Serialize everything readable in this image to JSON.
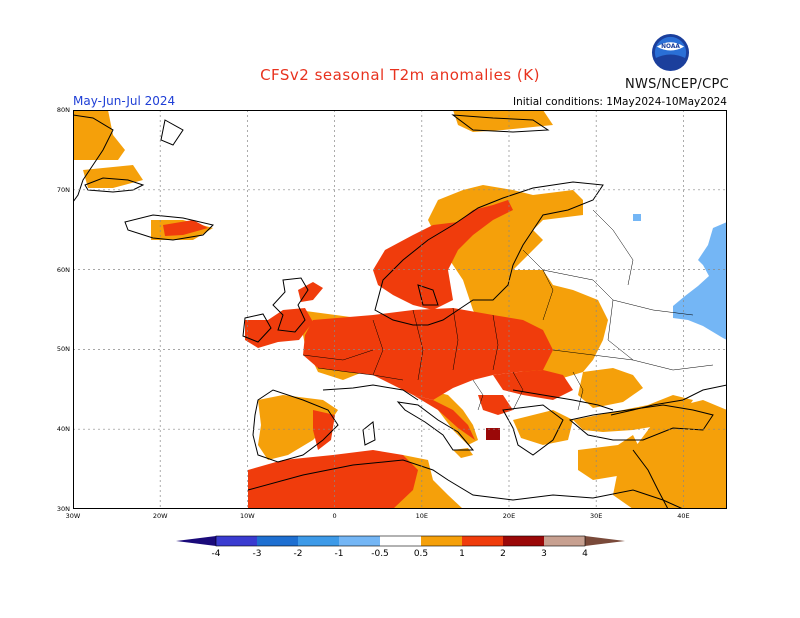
{
  "header": {
    "title": "CFSv2 seasonal T2m anomalies (K)",
    "agency": "NWS/NCEP/CPC",
    "period": "May-Jun-Jul 2024",
    "initial_conditions": "Initial conditions: 1May2024-10May2024",
    "logo_text": "NOAA"
  },
  "map": {
    "lat_labels": [
      "80N",
      "70N",
      "60N",
      "50N",
      "40N",
      "30N"
    ],
    "lon_labels": [
      "30W",
      "20W",
      "10W",
      "0",
      "10E",
      "20E",
      "30E",
      "40E"
    ],
    "lon_range": [
      -30,
      45
    ],
    "lat_range": [
      30,
      80
    ]
  },
  "colorbar": {
    "labels": [
      "-4",
      "-3",
      "-2",
      "-1",
      "-0.5",
      "0.5",
      "1",
      "2",
      "3",
      "4"
    ],
    "colors": {
      "lt_m4": "#1a0a7a",
      "m4_m3": "#3a3bd0",
      "m3_m2": "#1e6fd1",
      "m2_m1": "#3d9ae8",
      "m1_m05": "#74b6f5",
      "m05_05": "#ffffff",
      "p05_p1": "#f5a00a",
      "p1_p2": "#f03c0c",
      "p2_p3": "#9a0808",
      "p3_p4": "#c7a090",
      "gt_p4": "#7a4a3a"
    }
  }
}
